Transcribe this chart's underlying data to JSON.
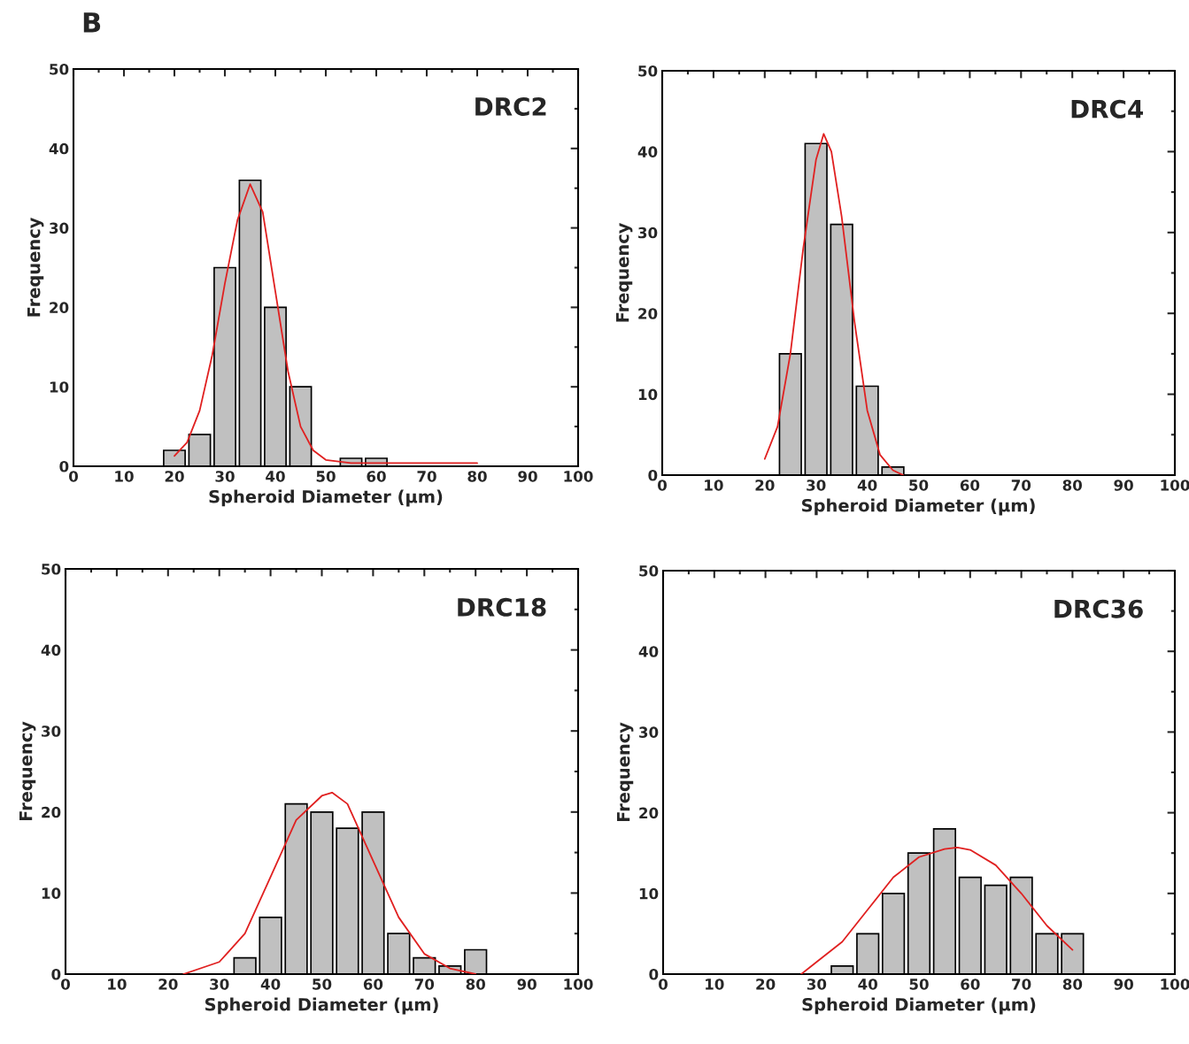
{
  "chart_data": [
    {
      "type": "histogram",
      "title": "DRC2",
      "xlabel": "Spheroid Diameter (μm)",
      "ylabel": "Frequency",
      "annotations": [
        "B"
      ],
      "xlim": [
        0,
        100
      ],
      "ylim": [
        0,
        50
      ],
      "xticks": [
        0,
        10,
        20,
        30,
        40,
        50,
        60,
        70,
        80,
        90,
        100
      ],
      "yticks": [
        0,
        10,
        20,
        30,
        40,
        50
      ],
      "series": [
        {
          "type": "histogram",
          "color": "#c0c0c0",
          "bins": [
            17.5,
            22.5,
            27.5,
            32.5,
            37.5,
            42.5,
            47.5,
            52.5,
            57.5,
            62.5
          ],
          "values": [
            2,
            4,
            25,
            36,
            20,
            10,
            0,
            1,
            1
          ]
        },
        {
          "type": "line",
          "color": "#e02020",
          "x": [
            20,
            22.5,
            25,
            27.5,
            30,
            32.5,
            35,
            37.5,
            40,
            42.5,
            45,
            47.5,
            50,
            55,
            60,
            70,
            80
          ],
          "values": [
            1.3,
            3,
            7,
            14,
            23,
            31,
            35.5,
            32,
            22,
            12,
            5,
            2,
            0.8,
            0.4,
            0.4,
            0.4,
            0.4
          ]
        }
      ]
    },
    {
      "type": "histogram",
      "title": "DRC4",
      "xlabel": "Spheroid Diameter (μm)",
      "ylabel": "Frequency",
      "xlim": [
        0,
        100
      ],
      "ylim": [
        0,
        50
      ],
      "xticks": [
        0,
        10,
        20,
        30,
        40,
        50,
        60,
        70,
        80,
        90,
        100
      ],
      "yticks": [
        0,
        10,
        20,
        30,
        40,
        50
      ],
      "series": [
        {
          "type": "histogram",
          "color": "#c0c0c0",
          "bins": [
            22.5,
            27.5,
            32.5,
            37.5,
            42.5,
            47.5
          ],
          "values": [
            15,
            41,
            31,
            11,
            1
          ]
        },
        {
          "type": "line",
          "color": "#e02020",
          "x": [
            20,
            22.5,
            25,
            27.5,
            30,
            31.5,
            33,
            35,
            37.5,
            40,
            42.5,
            45,
            47
          ],
          "values": [
            2,
            6,
            15,
            28,
            39,
            42.2,
            40,
            32,
            19,
            8,
            2.5,
            0.6,
            0
          ]
        }
      ]
    },
    {
      "type": "histogram",
      "title": "DRC18",
      "xlabel": "Spheroid Diameter (μm)",
      "ylabel": "Frequency",
      "xlim": [
        0,
        100
      ],
      "ylim": [
        0,
        50
      ],
      "xticks": [
        0,
        10,
        20,
        30,
        40,
        50,
        60,
        70,
        80,
        90,
        100
      ],
      "yticks": [
        0,
        10,
        20,
        30,
        40,
        50
      ],
      "series": [
        {
          "type": "histogram",
          "color": "#c0c0c0",
          "bins": [
            32.5,
            37.5,
            42.5,
            47.5,
            52.5,
            57.5,
            62.5,
            67.5,
            72.5,
            77.5,
            82.5
          ],
          "values": [
            2,
            7,
            21,
            20,
            18,
            20,
            5,
            2,
            1,
            3
          ]
        },
        {
          "type": "line",
          "color": "#e02020",
          "x": [
            23,
            30,
            35,
            40,
            45,
            50,
            52,
            55,
            60,
            65,
            70,
            75,
            80
          ],
          "values": [
            0,
            1.5,
            5,
            12,
            19,
            22,
            22.4,
            21,
            14,
            7,
            2.5,
            0.7,
            0
          ]
        }
      ]
    },
    {
      "type": "histogram",
      "title": "DRC36",
      "xlabel": "Spheroid Diameter (μm)",
      "ylabel": "Frequency",
      "xlim": [
        0,
        100
      ],
      "ylim": [
        0,
        50
      ],
      "xticks": [
        0,
        10,
        20,
        30,
        40,
        50,
        60,
        70,
        80,
        90,
        100
      ],
      "yticks": [
        0,
        10,
        20,
        30,
        40,
        50
      ],
      "series": [
        {
          "type": "histogram",
          "color": "#c0c0c0",
          "bins": [
            32.5,
            37.5,
            42.5,
            47.5,
            52.5,
            57.5,
            62.5,
            67.5,
            72.5,
            77.5,
            82.5
          ],
          "values": [
            1,
            5,
            10,
            15,
            18,
            12,
            11,
            12,
            5,
            5
          ]
        },
        {
          "type": "line",
          "color": "#e02020",
          "x": [
            27,
            30,
            35,
            40,
            45,
            50,
            55,
            57.5,
            60,
            65,
            70,
            75,
            80
          ],
          "values": [
            0,
            1.5,
            4,
            8,
            12,
            14.5,
            15.5,
            15.7,
            15.4,
            13.5,
            10,
            6,
            3
          ]
        }
      ]
    }
  ]
}
